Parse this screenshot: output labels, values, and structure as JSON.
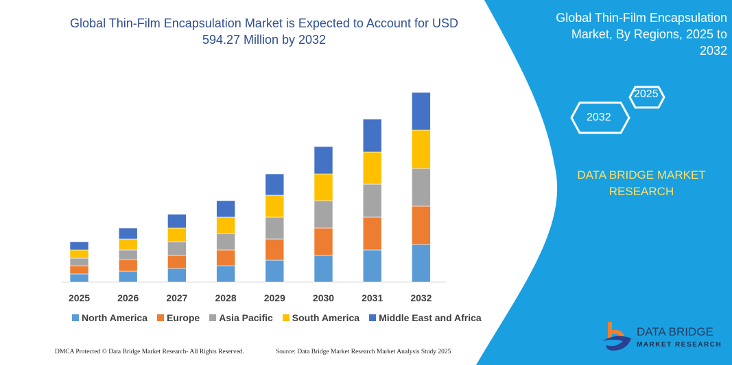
{
  "title": "Global Thin-Film Encapsulation Market is Expected to Account for USD 594.27 Million by 2032",
  "side_panel": {
    "title": "Global Thin-Film Encapsulation Market, By Regions, 2025 to 2032",
    "hex_a": "2025",
    "hex_b": "2032",
    "brand": "DATA BRIDGE MARKET RESEARCH",
    "logo_text": "DATA BRIDGE",
    "logo_sub": "MARKET RESEARCH",
    "color": "#1aa0e0"
  },
  "footer": {
    "left": "DMCA Protected © Data Bridge Market Research-  All Rights Reserved.",
    "right": "Source: Data Bridge Market Research  Market Analysis Study 2025"
  },
  "chart_data": {
    "type": "bar",
    "stacked": true,
    "title": "Global Thin-Film Encapsulation Market is Expected to Account for USD 594.27 Million by 2032",
    "categories": [
      "2025",
      "2026",
      "2027",
      "2028",
      "2029",
      "2030",
      "2031",
      "2032"
    ],
    "grid": false,
    "legend_position": "bottom",
    "y_axis_shown": false,
    "series": [
      {
        "name": "North America",
        "color": "#5b9bd5",
        "values": [
          12,
          16,
          20,
          24,
          32,
          39,
          47,
          55
        ]
      },
      {
        "name": "Europe",
        "color": "#ed7d31",
        "values": [
          12,
          17,
          19,
          23,
          31,
          40,
          48,
          56
        ]
      },
      {
        "name": "Asia Pacific",
        "color": "#a5a5a5",
        "values": [
          11,
          14,
          20,
          24,
          32,
          40,
          48,
          55
        ]
      },
      {
        "name": "South America",
        "color": "#ffc000",
        "values": [
          12,
          16,
          20,
          24,
          32,
          39,
          47,
          56
        ]
      },
      {
        "name": "Middle East and Africa",
        "color": "#4472c4",
        "values": [
          12,
          16,
          20,
          24,
          31,
          40,
          48,
          55
        ]
      }
    ]
  }
}
